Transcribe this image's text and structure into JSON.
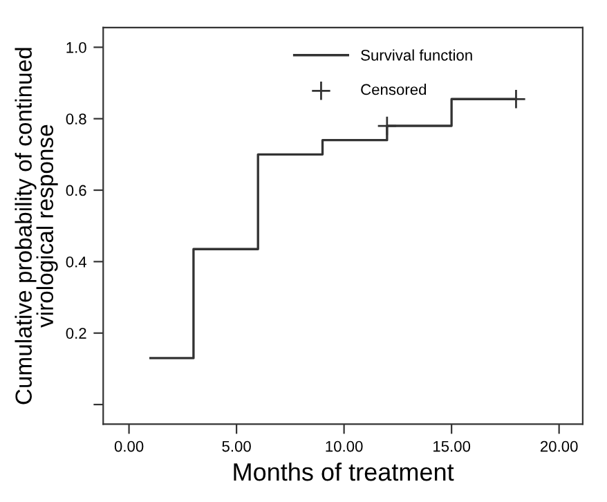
{
  "chart_data": {
    "type": "step",
    "xlabel": "Months of treatment",
    "ylabel": "Cumulative probability of continued\nvirological response",
    "series": [
      {
        "name": "Survival function",
        "color": "#333333",
        "x": [
          1,
          3,
          6,
          9,
          12,
          15,
          18
        ],
        "values": [
          0.13,
          0.435,
          0.7,
          0.74,
          0.78,
          0.855,
          0.855
        ]
      },
      {
        "name": "Censored",
        "type": "scatter",
        "marker": "cross",
        "color": "#333333",
        "x": [
          12,
          18
        ],
        "values": [
          0.78,
          0.855
        ]
      }
    ],
    "xlim": [
      -1.2,
      21.1
    ],
    "ylim": [
      -0.055,
      1.055
    ],
    "xticks": [
      {
        "value": 0,
        "label": "0.00"
      },
      {
        "value": 5,
        "label": "5.00"
      },
      {
        "value": 10,
        "label": "10.00"
      },
      {
        "value": 15,
        "label": "15.00"
      },
      {
        "value": 20,
        "label": "20.00"
      }
    ],
    "yticks": [
      {
        "value": 0,
        "label": null
      },
      0.2,
      0.4,
      0.6,
      0.8,
      {
        "value": 1,
        "label": "1.0"
      }
    ],
    "grid": false,
    "legend": "top right",
    "marker": "none",
    "line_style": "solid"
  }
}
